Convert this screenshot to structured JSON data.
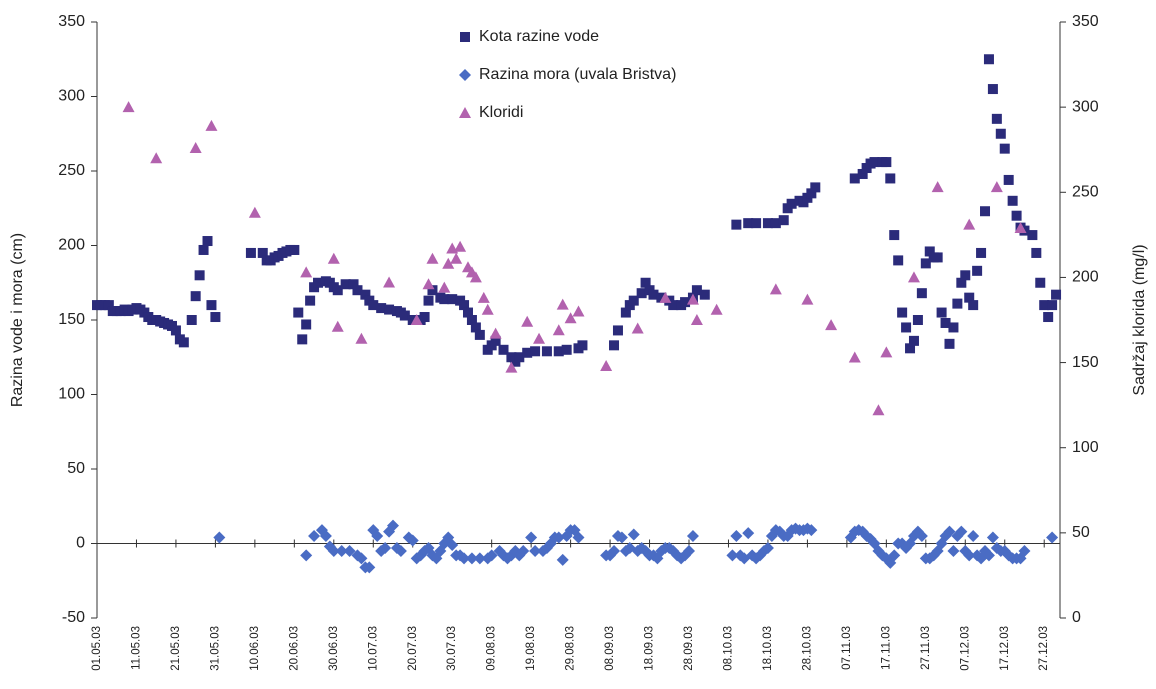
{
  "chart_data": {
    "type": "scatter",
    "y_label": "Razina vode i mora (cm)",
    "y2_label": "Sadržaj klorida (mg/l)",
    "xlim": [
      "01.05.03",
      "31.12.03"
    ],
    "xticks": [
      "01.05.03",
      "11.05.03",
      "21.05.03",
      "31.05.03",
      "10.06.03",
      "20.06.03",
      "30.06.03",
      "10.07.03",
      "20.07.03",
      "30.07.03",
      "09.08.03",
      "19.08.03",
      "29.08.03",
      "08.09.03",
      "18.09.03",
      "28.09.03",
      "08.10.03",
      "18.10.03",
      "28.10.03",
      "07.11.03",
      "17.11.03",
      "27.11.03",
      "07.12.03",
      "17.12.03",
      "27.12.03"
    ],
    "ylim": [
      -50,
      350
    ],
    "yticks": [
      -50,
      0,
      50,
      100,
      150,
      200,
      250,
      300,
      350
    ],
    "y2lim": [
      0,
      350
    ],
    "y2ticks": [
      0,
      50,
      100,
      150,
      200,
      250,
      300,
      350
    ],
    "legend": "upper center",
    "series": [
      {
        "name": "Kota razine vode",
        "color": "#2b2b7a",
        "marker": "square",
        "x": [
          "01.05.03",
          "02.05.03",
          "03.05.03",
          "04.05.03",
          "05.05.03",
          "06.05.03",
          "07.05.03",
          "08.05.03",
          "09.05.03",
          "10.05.03",
          "11.05.03",
          "12.05.03",
          "13.05.03",
          "14.05.03",
          "15.05.03",
          "16.05.03",
          "17.05.03",
          "18.05.03",
          "19.05.03",
          "20.05.03",
          "21.05.03",
          "22.05.03",
          "23.05.03",
          "25.05.03",
          "26.05.03",
          "27.05.03",
          "28.05.03",
          "29.05.03",
          "30.05.03",
          "31.05.03",
          "09.06.03",
          "12.06.03",
          "13.06.03",
          "14.06.03",
          "15.06.03",
          "16.06.03",
          "17.06.03",
          "18.06.03",
          "19.06.03",
          "20.06.03",
          "21.06.03",
          "22.06.03",
          "23.06.03",
          "24.06.03",
          "25.06.03",
          "26.06.03",
          "28.06.03",
          "29.06.03",
          "30.06.03",
          "01.07.03",
          "03.07.03",
          "05.07.03",
          "06.07.03",
          "08.07.03",
          "09.07.03",
          "10.07.03",
          "12.07.03",
          "14.07.03",
          "16.07.03",
          "17.07.03",
          "18.07.03",
          "20.07.03",
          "22.07.03",
          "23.07.03",
          "24.07.03",
          "25.07.03",
          "27.07.03",
          "28.07.03",
          "30.07.03",
          "01.08.03",
          "02.08.03",
          "03.08.03",
          "04.08.03",
          "05.08.03",
          "06.08.03",
          "08.08.03",
          "09.08.03",
          "10.08.03",
          "12.08.03",
          "14.08.03",
          "15.08.03",
          "16.08.03",
          "18.08.03",
          "20.08.03",
          "23.08.03",
          "26.08.03",
          "28.08.03",
          "31.08.03",
          "01.09.03",
          "09.09.03",
          "10.09.03",
          "12.09.03",
          "13.09.03",
          "14.09.03",
          "16.09.03",
          "17.09.03",
          "18.09.03",
          "19.09.03",
          "21.09.03",
          "23.09.03",
          "24.09.03",
          "26.09.03",
          "27.09.03",
          "29.09.03",
          "30.09.03",
          "02.10.03",
          "10.10.03",
          "13.10.03",
          "15.10.03",
          "18.10.03",
          "20.10.03",
          "22.10.03",
          "23.10.03",
          "24.10.03",
          "26.10.03",
          "27.10.03",
          "28.10.03",
          "29.10.03",
          "30.10.03",
          "09.11.03",
          "11.11.03",
          "12.11.03",
          "13.11.03",
          "14.11.03",
          "16.11.03",
          "17.11.03",
          "18.11.03",
          "19.11.03",
          "20.11.03",
          "21.11.03",
          "22.11.03",
          "23.11.03",
          "24.11.03",
          "25.11.03",
          "26.11.03",
          "27.11.03",
          "28.11.03",
          "29.11.03",
          "30.11.03",
          "01.12.03",
          "02.12.03",
          "03.12.03",
          "04.12.03",
          "05.12.03",
          "06.12.03",
          "07.12.03",
          "08.12.03",
          "09.12.03",
          "10.12.03",
          "11.12.03",
          "12.12.03",
          "13.12.03",
          "14.12.03",
          "15.12.03",
          "16.12.03",
          "17.12.03",
          "18.12.03",
          "19.12.03",
          "20.12.03",
          "21.12.03",
          "22.12.03",
          "24.12.03",
          "25.12.03",
          "26.12.03",
          "27.12.03",
          "28.12.03",
          "29.12.03",
          "30.12.03"
        ],
        "values": [
          160,
          160,
          160,
          160,
          156,
          156,
          156,
          157,
          156,
          157,
          158,
          157,
          155,
          152,
          150,
          150,
          149,
          148,
          147,
          146,
          143,
          137,
          135,
          150,
          166,
          180,
          197,
          203,
          160,
          152,
          195,
          195,
          190,
          190,
          192,
          193,
          195,
          196,
          197,
          197,
          155,
          137,
          147,
          163,
          172,
          175,
          176,
          175,
          172,
          170,
          174,
          174,
          170,
          167,
          163,
          160,
          158,
          157,
          156,
          155,
          153,
          150,
          150,
          152,
          163,
          170,
          165,
          164,
          164,
          163,
          160,
          155,
          150,
          145,
          140,
          130,
          133,
          136,
          130,
          125,
          122,
          125,
          128,
          129,
          129,
          129,
          130,
          131,
          133,
          133,
          143,
          155,
          160,
          163,
          168,
          175,
          170,
          167,
          165,
          163,
          160,
          160,
          162,
          165,
          170,
          167,
          214,
          215,
          215,
          215,
          215,
          217,
          225,
          228,
          230,
          229,
          232,
          235,
          239,
          245,
          248,
          252,
          255,
          256,
          256,
          256,
          245,
          207,
          190,
          155,
          145,
          131,
          136,
          150,
          168,
          188,
          196,
          192,
          192,
          155,
          148,
          134,
          145,
          161,
          175,
          180,
          165,
          160,
          183,
          195,
          223,
          325,
          305,
          285,
          275,
          265,
          244,
          230,
          220,
          212,
          210,
          207,
          195,
          175,
          160,
          152,
          160,
          167
        ]
      },
      {
        "name": "Razina mora (uvala Bristva)",
        "color": "#4a6cc4",
        "marker": "diamond",
        "x": [
          "01.06.03",
          "23.06.03",
          "25.06.03",
          "27.06.03",
          "28.06.03",
          "29.06.03",
          "30.06.03",
          "02.07.03",
          "04.07.03",
          "06.07.03",
          "07.07.03",
          "08.07.03",
          "09.07.03",
          "10.07.03",
          "11.07.03",
          "12.07.03",
          "13.07.03",
          "14.07.03",
          "15.07.03",
          "16.07.03",
          "17.07.03",
          "19.07.03",
          "20.07.03",
          "21.07.03",
          "22.07.03",
          "23.07.03",
          "24.07.03",
          "25.07.03",
          "26.07.03",
          "27.07.03",
          "28.07.03",
          "29.07.03",
          "30.07.03",
          "31.07.03",
          "01.08.03",
          "02.08.03",
          "04.08.03",
          "06.08.03",
          "08.08.03",
          "09.08.03",
          "11.08.03",
          "12.08.03",
          "13.08.03",
          "14.08.03",
          "15.08.03",
          "16.08.03",
          "17.08.03",
          "19.08.03",
          "20.08.03",
          "22.08.03",
          "23.08.03",
          "24.08.03",
          "25.08.03",
          "26.08.03",
          "27.08.03",
          "28.08.03",
          "29.08.03",
          "30.08.03",
          "31.08.03",
          "07.09.03",
          "08.09.03",
          "09.09.03",
          "10.09.03",
          "11.09.03",
          "12.09.03",
          "13.09.03",
          "14.09.03",
          "15.09.03",
          "16.09.03",
          "17.09.03",
          "18.09.03",
          "19.09.03",
          "20.09.03",
          "21.09.03",
          "22.09.03",
          "23.09.03",
          "24.09.03",
          "25.09.03",
          "26.09.03",
          "27.09.03",
          "28.09.03",
          "29.09.03",
          "09.10.03",
          "10.10.03",
          "11.10.03",
          "12.10.03",
          "13.10.03",
          "14.10.03",
          "15.10.03",
          "16.10.03",
          "17.10.03",
          "18.10.03",
          "19.10.03",
          "20.10.03",
          "21.10.03",
          "22.10.03",
          "23.10.03",
          "24.10.03",
          "25.10.03",
          "26.10.03",
          "27.10.03",
          "28.10.03",
          "29.10.03",
          "08.11.03",
          "09.11.03",
          "10.11.03",
          "11.11.03",
          "12.11.03",
          "13.11.03",
          "14.11.03",
          "15.11.03",
          "16.11.03",
          "17.11.03",
          "18.11.03",
          "19.11.03",
          "20.11.03",
          "21.11.03",
          "22.11.03",
          "23.11.03",
          "24.11.03",
          "25.11.03",
          "26.11.03",
          "27.11.03",
          "28.11.03",
          "29.11.03",
          "30.11.03",
          "01.12.03",
          "02.12.03",
          "03.12.03",
          "04.12.03",
          "05.12.03",
          "06.12.03",
          "07.12.03",
          "08.12.03",
          "09.12.03",
          "10.12.03",
          "11.12.03",
          "12.12.03",
          "13.12.03",
          "14.12.03",
          "15.12.03",
          "16.12.03",
          "17.12.03",
          "18.12.03",
          "19.12.03",
          "20.12.03",
          "21.12.03",
          "22.12.03",
          "29.12.03"
        ],
        "values": [
          4,
          -8,
          5,
          9,
          5,
          -2,
          -5,
          -5,
          -5,
          -8,
          -10,
          -16,
          -16,
          9,
          5,
          -5,
          -3,
          8,
          12,
          -3,
          -5,
          4,
          2,
          -10,
          -8,
          -5,
          -3,
          -8,
          -10,
          -5,
          0,
          4,
          -1,
          -8,
          -8,
          -10,
          -10,
          -10,
          -10,
          -8,
          -5,
          -8,
          -10,
          -8,
          -5,
          -8,
          -5,
          4,
          -5,
          -5,
          -3,
          0,
          4,
          4,
          -11,
          5,
          9,
          9,
          4,
          -8,
          -8,
          -5,
          5,
          4,
          -5,
          -3,
          6,
          -5,
          -3,
          -5,
          -8,
          -8,
          -10,
          -5,
          -3,
          -3,
          -5,
          -8,
          -10,
          -8,
          -5,
          5,
          -8,
          5,
          -8,
          -10,
          7,
          -8,
          -10,
          -8,
          -5,
          -3,
          5,
          9,
          8,
          5,
          5,
          9,
          10,
          9,
          9,
          10,
          9,
          4,
          8,
          9,
          8,
          5,
          3,
          0,
          -5,
          -8,
          -10,
          -13,
          -8,
          0,
          0,
          -3,
          0,
          5,
          8,
          5,
          -10,
          -10,
          -8,
          -5,
          0,
          5,
          8,
          -5,
          5,
          8,
          -5,
          -8,
          5,
          -8,
          -10,
          -5,
          -8,
          4,
          -3,
          -5,
          -5,
          -8,
          -10,
          -10,
          -10,
          -5,
          4
        ]
      },
      {
        "name": "Kloridi",
        "color": "#b262ae",
        "marker": "triangle",
        "axis": "y2",
        "x": [
          "09.05.03",
          "16.05.03",
          "26.05.03",
          "30.05.03",
          "10.06.03",
          "23.06.03",
          "30.06.03",
          "01.07.03",
          "07.07.03",
          "14.07.03",
          "21.07.03",
          "24.07.03",
          "25.07.03",
          "28.07.03",
          "29.07.03",
          "30.07.03",
          "31.07.03",
          "01.08.03",
          "03.08.03",
          "04.08.03",
          "05.08.03",
          "07.08.03",
          "08.08.03",
          "10.08.03",
          "14.08.03",
          "18.08.03",
          "21.08.03",
          "26.08.03",
          "27.08.03",
          "29.08.03",
          "31.08.03",
          "07.09.03",
          "15.09.03",
          "22.09.03",
          "29.09.03",
          "30.09.03",
          "05.10.03",
          "20.10.03",
          "28.10.03",
          "03.11.03",
          "09.11.03",
          "15.11.03",
          "17.11.03",
          "24.11.03",
          "30.11.03",
          "08.12.03",
          "15.12.03",
          "21.12.03"
        ],
        "values": [
          300,
          270,
          276,
          289,
          238,
          203,
          211,
          171,
          164,
          197,
          175,
          196,
          211,
          194,
          208,
          217,
          211,
          218,
          206,
          203,
          200,
          188,
          181,
          167,
          147,
          174,
          164,
          169,
          184,
          176,
          180,
          148,
          170,
          188,
          187,
          175,
          181,
          193,
          187,
          172,
          153,
          122,
          156,
          200,
          253,
          231,
          253,
          229
        ]
      }
    ]
  }
}
